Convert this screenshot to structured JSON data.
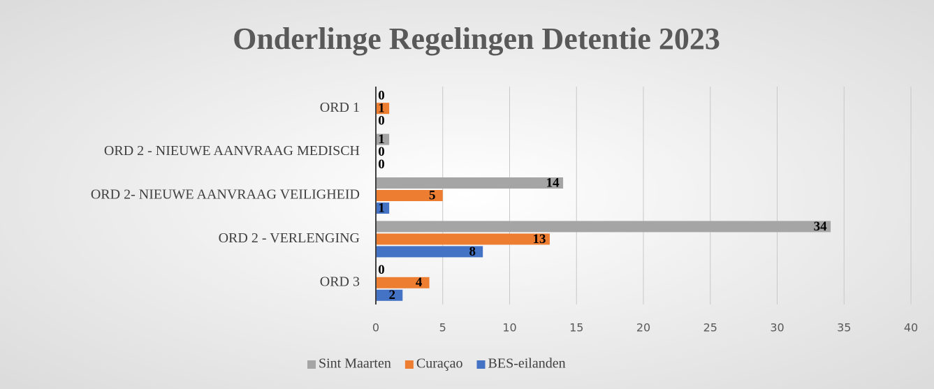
{
  "chart_data": {
    "type": "bar",
    "orientation": "horizontal",
    "title": "Onderlinge Regelingen Detentie 2023",
    "categories": [
      "ORD 1",
      "ORD 2 - NIEUWE AANVRAAG MEDISCH",
      "ORD 2- NIEUWE AANVRAAG VEILIGHEID",
      "ORD 2 - VERLENGING",
      "ORD 3"
    ],
    "series": [
      {
        "name": "Sint Maarten",
        "color": "#a5a5a5",
        "values": [
          0,
          1,
          14,
          34,
          0
        ]
      },
      {
        "name": "Curaçao",
        "color": "#ed7d31",
        "values": [
          1,
          0,
          5,
          13,
          4
        ]
      },
      {
        "name": "BES-eilanden",
        "color": "#4472c4",
        "values": [
          0,
          0,
          1,
          8,
          2
        ]
      }
    ],
    "xlim": [
      0,
      40
    ],
    "xticks": [
      0,
      5,
      10,
      15,
      20,
      25,
      30,
      35,
      40
    ],
    "grid": true,
    "legend": "bottom"
  }
}
